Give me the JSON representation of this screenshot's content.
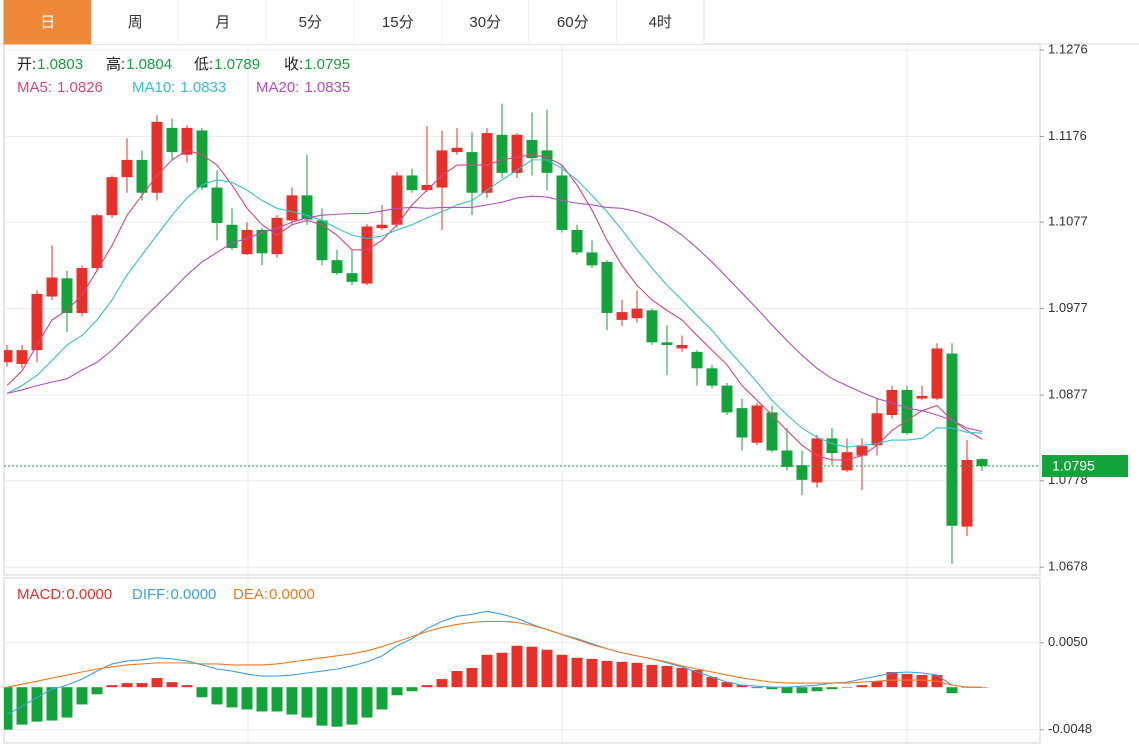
{
  "tabs": {
    "items": [
      "日",
      "周",
      "月",
      "5分",
      "15分",
      "30分",
      "60分",
      "4时"
    ],
    "active": 0
  },
  "chart_data": [
    {
      "type": "candlestick",
      "quote_labels": [
        "开:",
        "高:",
        "低:",
        "收:"
      ],
      "up_color": "#e8302a",
      "down_color": "#12a33b",
      "open": [
        1.0915,
        1.0913,
        1.0929,
        1.0991,
        1.1012,
        1.0972,
        1.1024,
        1.1085,
        1.1129,
        1.1149,
        1.1111,
        1.1186,
        1.1155,
        1.1183,
        1.1117,
        1.1074,
        1.104,
        1.1068,
        1.104,
        1.1079,
        1.1108,
        1.1079,
        1.1033,
        1.1018,
        1.1006,
        1.107,
        1.1074,
        1.1131,
        1.1114,
        1.1117,
        1.1158,
        1.1158,
        1.1111,
        1.1178,
        1.1134,
        1.1172,
        1.116,
        1.1131,
        1.1068,
        1.1042,
        1.1031,
        1.0964,
        1.0966,
        1.0975,
        1.0938,
        1.0931,
        1.0927,
        1.0908,
        1.0888,
        1.0862,
        1.0822,
        1.0857,
        1.0813,
        1.0796,
        1.0776,
        1.0827,
        1.079,
        1.0807,
        1.0819,
        1.0854,
        1.0883,
        1.0873,
        1.0873,
        1.0925,
        1.0725,
        1.0803
      ],
      "high": [
        1.0935,
        1.0935,
        1.0998,
        1.105,
        1.1021,
        1.1027,
        1.1087,
        1.1131,
        1.1174,
        1.116,
        1.1201,
        1.1197,
        1.1189,
        1.1186,
        1.1137,
        1.1093,
        1.1077,
        1.107,
        1.1085,
        1.1117,
        1.1155,
        1.1093,
        1.1045,
        1.1045,
        1.1075,
        1.1097,
        1.1135,
        1.1139,
        1.1188,
        1.1183,
        1.1186,
        1.1181,
        1.1186,
        1.1214,
        1.118,
        1.1204,
        1.1207,
        1.1143,
        1.1074,
        1.1056,
        1.1033,
        1.0987,
        1.0998,
        1.0977,
        1.0958,
        1.0946,
        1.0929,
        1.0912,
        1.0891,
        1.0873,
        1.0868,
        1.0865,
        1.0839,
        1.0813,
        1.0831,
        1.0839,
        1.0827,
        1.0827,
        1.0873,
        1.0888,
        1.0888,
        1.0888,
        1.0937,
        1.0937,
        1.0825,
        1.0804
      ],
      "low": [
        1.091,
        1.0908,
        1.0915,
        1.0987,
        1.095,
        1.0968,
        1.1021,
        1.1082,
        1.1111,
        1.1102,
        1.1102,
        1.1149,
        1.1146,
        1.1114,
        1.1056,
        1.1045,
        1.1039,
        1.1027,
        1.1036,
        1.1074,
        1.1074,
        1.1027,
        1.1016,
        1.1004,
        1.1004,
        1.1068,
        1.1071,
        1.1111,
        1.1112,
        1.1068,
        1.1155,
        1.1085,
        1.1105,
        1.1128,
        1.1128,
        1.1131,
        1.1114,
        1.1065,
        1.1039,
        1.1024,
        1.0952,
        1.0957,
        1.0961,
        1.0935,
        1.09,
        1.0927,
        1.0888,
        1.0885,
        1.0854,
        1.0813,
        1.0819,
        1.0811,
        1.079,
        1.0761,
        1.077,
        1.0796,
        1.0788,
        1.0767,
        1.0807,
        1.085,
        1.0831,
        1.0871,
        1.0871,
        1.0682,
        1.0714,
        1.0789
      ],
      "close": [
        1.0929,
        1.0929,
        1.0994,
        1.1013,
        1.0972,
        1.1024,
        1.1085,
        1.1129,
        1.1149,
        1.1111,
        1.1193,
        1.1158,
        1.1186,
        1.1117,
        1.1076,
        1.1047,
        1.1068,
        1.1041,
        1.1082,
        1.1108,
        1.108,
        1.1033,
        1.1018,
        1.1008,
        1.1072,
        1.1074,
        1.1131,
        1.1114,
        1.112,
        1.116,
        1.1163,
        1.1111,
        1.118,
        1.1134,
        1.1178,
        1.1151,
        1.1134,
        1.1068,
        1.1042,
        1.1027,
        1.0972,
        1.0973,
        1.0977,
        1.0938,
        1.0935,
        1.0935,
        1.0908,
        1.0888,
        1.0857,
        1.0828,
        1.0865,
        1.0813,
        1.0794,
        1.0779,
        1.0827,
        1.081,
        1.0811,
        1.0818,
        1.0856,
        1.0883,
        1.0833,
        1.0876,
        1.0931,
        1.0726,
        1.0802,
        1.0795
      ],
      "series": [
        {
          "name": "MA5:",
          "color": "#d9447a",
          "values": [
            1.0888,
            1.0905,
            1.0935,
            1.0964,
            1.0975,
            1.0993,
            1.1021,
            1.105,
            1.1085,
            1.1108,
            1.1131,
            1.1149,
            1.116,
            1.1155,
            1.1143,
            1.112,
            1.1093,
            1.1074,
            1.1062,
            1.1074,
            1.1079,
            1.1074,
            1.1062,
            1.1045,
            1.1045,
            1.1056,
            1.1074,
            1.1097,
            1.1114,
            1.1131,
            1.1143,
            1.1143,
            1.1143,
            1.1149,
            1.1152,
            1.1155,
            1.1152,
            1.1143,
            1.112,
            1.1091,
            1.1056,
            1.1027,
            1.1004,
            1.0987,
            1.0975,
            1.0964,
            1.0946,
            1.0929,
            1.0912,
            1.0888,
            1.0871,
            1.0854,
            1.0836,
            1.0819,
            1.0807,
            1.0802,
            1.0802,
            1.0807,
            1.0819,
            1.0836,
            1.0848,
            1.0859,
            1.0865,
            1.0848,
            1.0836,
            1.0826
          ]
        },
        {
          "name": "MA10:",
          "color": "#35bfd0",
          "values": [
            1.0879,
            1.0888,
            1.09,
            1.0917,
            1.0935,
            1.0946,
            1.0964,
            1.0987,
            1.1016,
            1.1039,
            1.1062,
            1.1085,
            1.1105,
            1.112,
            1.1126,
            1.1123,
            1.1114,
            1.1102,
            1.1093,
            1.1089,
            1.1085,
            1.1079,
            1.107,
            1.1062,
            1.1058,
            1.1061,
            1.1068,
            1.1074,
            1.1082,
            1.1089,
            1.1097,
            1.1102,
            1.1114,
            1.1126,
            1.1137,
            1.1149,
            1.1149,
            1.1139,
            1.1126,
            1.1108,
            1.1089,
            1.1068,
            1.1045,
            1.1024,
            1.1004,
            1.0987,
            1.0969,
            1.0952,
            1.0931,
            1.0912,
            1.0892,
            1.0871,
            1.0854,
            1.0839,
            1.0828,
            1.0821,
            1.0817,
            1.0819,
            1.0821,
            1.0825,
            1.0825,
            1.0827,
            1.0839,
            1.0839,
            1.0834,
            1.0833
          ]
        },
        {
          "name": "MA20:",
          "color": "#b150c0",
          "values": [
            1.0879,
            1.0883,
            1.0888,
            1.0892,
            1.0896,
            1.0906,
            1.0915,
            1.0929,
            1.0946,
            1.0964,
            1.0981,
            1.0998,
            1.1016,
            1.1031,
            1.1042,
            1.1053,
            1.1058,
            1.1065,
            1.107,
            1.1077,
            1.1082,
            1.1085,
            1.1086,
            1.1087,
            1.1087,
            1.109,
            1.1093,
            1.1094,
            1.1093,
            1.1094,
            1.1094,
            1.1094,
            1.1097,
            1.11,
            1.1105,
            1.1107,
            1.1106,
            1.1102,
            1.1099,
            1.1097,
            1.1094,
            1.1093,
            1.1089,
            1.1083,
            1.1074,
            1.1062,
            1.1047,
            1.1031,
            1.1013,
            1.0995,
            1.0977,
            1.0958,
            1.094,
            1.0923,
            1.0908,
            1.0896,
            1.0888,
            1.088,
            1.0873,
            1.0868,
            1.0862,
            1.0859,
            1.0854,
            1.0848,
            1.0839,
            1.0835
          ]
        }
      ],
      "ylim": [
        1.0669,
        1.1283
      ],
      "yticks": [
        1.1276,
        1.1176,
        1.1077,
        1.0977,
        1.0877,
        1.0778,
        1.0678
      ],
      "grid": true,
      "last_price_line": true
    },
    {
      "type": "macd",
      "series": [
        {
          "name": "MACD:",
          "style": "bar",
          "color": "#e8302a",
          "down_color": "#12a33b",
          "current_label": "0.0000",
          "values": [
            -0.00479,
            -0.00422,
            -0.00388,
            -0.00376,
            -0.00342,
            -0.00194,
            -0.0008,
            0.00023,
            0.00046,
            0.00046,
            0.00103,
            0.00057,
            0.00023,
            -0.00114,
            -0.00194,
            -0.00228,
            -0.00251,
            -0.00274,
            -0.00274,
            -0.00308,
            -0.00342,
            -0.00433,
            -0.00445,
            -0.00422,
            -0.00342,
            -0.00251,
            -0.00091,
            -0.00046,
            0.00023,
            0.00091,
            0.00182,
            0.00217,
            0.00365,
            0.00388,
            0.00467,
            0.00456,
            0.00422,
            0.00365,
            0.00331,
            0.00319,
            0.00296,
            0.00285,
            0.00274,
            0.00251,
            0.00239,
            0.00217,
            0.00194,
            0.00114,
            0.00057,
            0.00023,
            -0.00011,
            -0.00023,
            -0.00068,
            -0.00068,
            -0.00046,
            -0.00023,
            0,
            0.00023,
            0.00068,
            0.00171,
            0.00148,
            0.00137,
            0.00137,
            -0.00068,
            0,
            0
          ]
        },
        {
          "name": "DIFF:",
          "style": "line",
          "color": "#3ea0e0",
          "current_label": "0.0000",
          "values": [
            -0.00308,
            -0.00217,
            -0.00114,
            -0.00023,
            0.00023,
            0.00091,
            0.00182,
            0.00262,
            0.00296,
            0.00308,
            0.00331,
            0.00319,
            0.00296,
            0.00251,
            0.00205,
            0.00182,
            0.00148,
            0.00125,
            0.00125,
            0.00137,
            0.0016,
            0.00182,
            0.00205,
            0.00239,
            0.00285,
            0.00353,
            0.00467,
            0.00547,
            0.00661,
            0.00741,
            0.00798,
            0.00821,
            0.00855,
            0.00821,
            0.00775,
            0.00707,
            0.0065,
            0.00593,
            0.00547,
            0.0049,
            0.00433,
            0.00388,
            0.00353,
            0.00319,
            0.00274,
            0.00228,
            0.00171,
            0.00114,
            0.00057,
            0.00023,
            0.00011,
            0,
            0,
            0.00011,
            0.00023,
            0.00046,
            0.00057,
            0.00091,
            0.00125,
            0.0016,
            0.00171,
            0.0016,
            0.00137,
            0.00023,
            0,
            0
          ]
        },
        {
          "name": "DEA:",
          "style": "line",
          "color": "#f07a1d",
          "current_label": "0.0000",
          "values": [
            0,
            0.00034,
            0.00068,
            0.00103,
            0.00137,
            0.00171,
            0.00205,
            0.00228,
            0.00251,
            0.00262,
            0.00274,
            0.00274,
            0.00274,
            0.00262,
            0.00262,
            0.00251,
            0.00251,
            0.00251,
            0.00262,
            0.00285,
            0.00308,
            0.00331,
            0.00353,
            0.00376,
            0.0041,
            0.00456,
            0.00513,
            0.0057,
            0.00627,
            0.00673,
            0.00707,
            0.0073,
            0.00741,
            0.00741,
            0.0073,
            0.00695,
            0.0065,
            0.00593,
            0.00536,
            0.00479,
            0.00433,
            0.00388,
            0.00353,
            0.00319,
            0.00285,
            0.00239,
            0.00205,
            0.00171,
            0.00137,
            0.00103,
            0.0008,
            0.00057,
            0.00046,
            0.00046,
            0.00046,
            0.00046,
            0.00046,
            0.00057,
            0.00068,
            0.0008,
            0.0008,
            0.0008,
            0.00068,
            0.00023,
            0,
            0
          ]
        }
      ],
      "ylim": [
        -0.0064,
        0.0123
      ],
      "yticks": [
        {
          "value": 0.005,
          "label": "0.0050"
        },
        {
          "value": -0.0048,
          "label": "-0.0048"
        }
      ],
      "grid": true
    }
  ]
}
